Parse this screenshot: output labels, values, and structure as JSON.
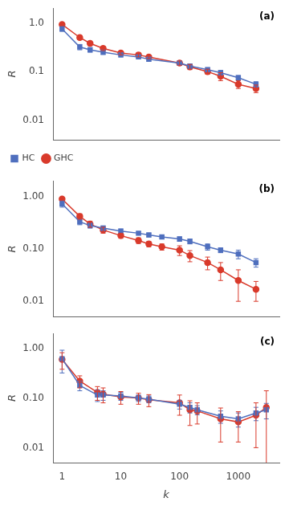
{
  "chart_data": [
    {
      "type": "line",
      "annotation": "(a)",
      "ylabel": "R",
      "x": [
        1,
        2,
        3,
        5,
        10,
        20,
        30,
        100,
        150,
        300,
        500,
        1000,
        2000
      ],
      "series": [
        {
          "name": "HC",
          "color": "#4f6fbe",
          "marker": "square",
          "line_style": "solid",
          "values": [
            0.75,
            0.32,
            0.28,
            0.25,
            0.22,
            0.2,
            0.18,
            0.15,
            0.13,
            0.11,
            0.095,
            0.075,
            0.055
          ],
          "errors": [
            0.08,
            0.04,
            0.03,
            0.025,
            0.02,
            0.015,
            0.015,
            0.012,
            0.012,
            0.01,
            0.01,
            0.008,
            0.007
          ]
        },
        {
          "name": "GHC",
          "color": "#d93a2b",
          "marker": "circle",
          "line_style": "solid",
          "values": [
            0.93,
            0.5,
            0.38,
            0.3,
            0.24,
            0.22,
            0.2,
            0.15,
            0.125,
            0.1,
            0.08,
            0.055,
            0.045
          ],
          "errors": [
            0.04,
            0.05,
            0.04,
            0.03,
            0.02,
            0.02,
            0.015,
            0.015,
            0.015,
            0.012,
            0.015,
            0.01,
            0.008
          ]
        }
      ],
      "xlim": [
        0.7,
        5000
      ],
      "xticks": [
        1,
        10,
        100,
        1000
      ],
      "ylim": [
        0.004,
        2.0
      ],
      "yticks": [
        0.01,
        0.1,
        {
          "value": 1.0,
          "label": "1.0"
        }
      ],
      "log": true,
      "grid": false,
      "legend": "lower left",
      "tick_labels": "y"
    },
    {
      "type": "line",
      "annotation": "(b)",
      "ylabel": "R",
      "x": [
        1,
        2,
        3,
        5,
        10,
        20,
        30,
        50,
        100,
        150,
        300,
        500,
        1000,
        2000
      ],
      "series": [
        {
          "name": "HC",
          "color": "#4f6fbe",
          "marker": "square",
          "line_style": "solid",
          "values": [
            0.73,
            0.33,
            0.28,
            0.25,
            0.22,
            0.2,
            0.185,
            0.17,
            0.155,
            0.14,
            0.11,
            0.095,
            0.08,
            0.055
          ],
          "errors": [
            0.1,
            0.04,
            0.03,
            0.025,
            0.02,
            0.015,
            0.015,
            0.012,
            0.015,
            0.015,
            0.015,
            0.01,
            0.015,
            0.01
          ]
        },
        {
          "name": "GHC",
          "color": "#d93a2b",
          "marker": "circle",
          "line_style": "solid",
          "values": [
            0.9,
            0.42,
            0.3,
            0.23,
            0.18,
            0.145,
            0.125,
            0.11,
            0.095,
            0.075,
            0.055,
            0.04,
            0.025,
            0.017
          ],
          "errors": [
            0.04,
            0.05,
            0.04,
            0.03,
            0.02,
            0.018,
            0.015,
            0.015,
            0.02,
            0.018,
            0.015,
            0.015,
            0.015,
            0.007
          ]
        }
      ],
      "xlim": [
        0.7,
        5000
      ],
      "xticks": [
        1,
        10,
        100,
        1000
      ],
      "ylim": [
        0.005,
        2.0
      ],
      "yticks": [
        0.01,
        {
          "value": 0.1,
          "label": "0.10"
        },
        {
          "value": 1.0,
          "label": "1.00"
        }
      ],
      "log": true,
      "grid": false,
      "tick_labels": "y"
    },
    {
      "type": "line",
      "annotation": "(c)",
      "ylabel": "R",
      "xlabel": "k",
      "x": [
        1,
        2,
        4,
        5,
        10,
        20,
        30,
        100,
        150,
        200,
        500,
        1000,
        2000,
        3000
      ],
      "series": [
        {
          "name": "HC",
          "color": "#4f6fbe",
          "marker": "square",
          "line_style": "solid",
          "values": [
            0.62,
            0.18,
            0.115,
            0.115,
            0.11,
            0.1,
            0.095,
            0.075,
            0.065,
            0.058,
            0.043,
            0.038,
            0.05,
            0.058
          ],
          "errors": [
            0.3,
            0.04,
            0.03,
            0.025,
            0.02,
            0.015,
            0.015,
            0.015,
            0.015,
            0.012,
            0.012,
            0.012,
            0.015,
            0.02
          ]
        },
        {
          "name": "GHC",
          "color": "#d93a2b",
          "marker": "circle",
          "line_style": "solid",
          "values": [
            0.6,
            0.22,
            0.13,
            0.12,
            0.105,
            0.1,
            0.092,
            0.08,
            0.058,
            0.055,
            0.038,
            0.033,
            0.045,
            0.065
          ],
          "errors": [
            0.22,
            0.06,
            0.04,
            0.04,
            0.03,
            0.025,
            0.025,
            0.035,
            0.03,
            0.025,
            0.025,
            0.02,
            0.035,
            0.075
          ]
        }
      ],
      "xlim": [
        0.7,
        5000
      ],
      "xticks": [
        1,
        10,
        100,
        1000
      ],
      "ylim": [
        0.005,
        2.0
      ],
      "yticks": [
        0.01,
        {
          "value": 0.1,
          "label": "0.10"
        },
        {
          "value": 1.0,
          "label": "1.00"
        }
      ],
      "log": true,
      "grid": false
    }
  ]
}
